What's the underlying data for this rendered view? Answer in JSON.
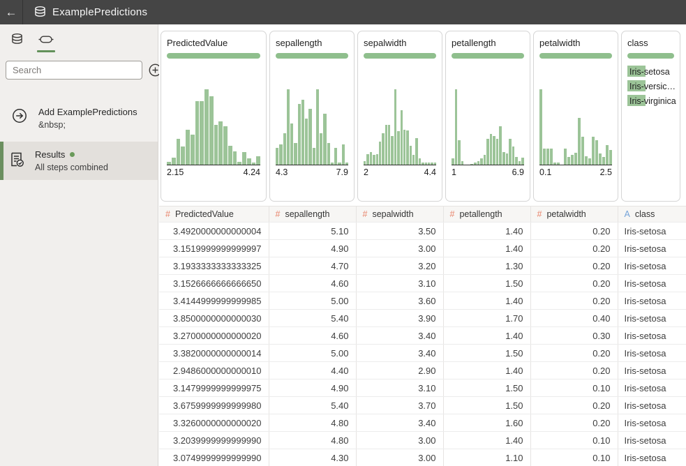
{
  "colors": {
    "header_bg": "#454545",
    "histogram_green": "#9cc498",
    "quality_green": "#8fbf8d",
    "active_tab_green": "#63915a",
    "selected_border_green": "#6b8f5f",
    "status_dot_green": "#6a9a5a",
    "numeric_icon_color": "#e8846b",
    "text_icon_color": "#74a3d8"
  },
  "header": {
    "back_glyph": "←",
    "title": "ExamplePredictions"
  },
  "sidebar": {
    "search": {
      "placeholder": "Search"
    },
    "items": [
      {
        "title": "Add ExamplePredictions",
        "subtitle": "&nbsp;",
        "selected": false,
        "has_status_dot": false
      },
      {
        "title": "Results",
        "subtitle": "All steps combined",
        "selected": true,
        "has_status_dot": true
      }
    ]
  },
  "cards": [
    {
      "title": "PredictedValue",
      "type": "histogram",
      "min": "2.15",
      "max": "4.24",
      "bars": [
        4,
        9,
        34,
        24,
        46,
        40,
        84,
        84,
        100,
        91,
        53,
        57,
        51,
        25,
        18,
        4,
        17,
        8,
        3,
        11
      ]
    },
    {
      "title": "sepallength",
      "type": "histogram",
      "min": "4.3",
      "max": "7.9",
      "bars": [
        22,
        27,
        42,
        100,
        55,
        29,
        81,
        86,
        61,
        74,
        22,
        100,
        42,
        68,
        29,
        3,
        22,
        3,
        27,
        3
      ]
    },
    {
      "title": "sepalwidth",
      "type": "histogram",
      "min": "2",
      "max": "4.4",
      "bars": [
        5,
        14,
        17,
        13,
        14,
        31,
        42,
        53,
        53,
        38,
        100,
        44,
        72,
        46,
        45,
        25,
        13,
        35,
        8,
        3,
        3,
        3,
        3,
        3
      ]
    },
    {
      "title": "petallength",
      "type": "histogram",
      "min": "1",
      "max": "6.9",
      "bars": [
        8,
        100,
        32,
        5,
        0,
        0,
        1,
        3,
        5,
        8,
        13,
        34,
        41,
        38,
        34,
        51,
        17,
        15,
        34,
        24,
        10,
        5,
        9
      ]
    },
    {
      "title": "petalwidth",
      "type": "histogram",
      "min": "0.1",
      "max": "2.5",
      "bars": [
        100,
        21,
        21,
        21,
        3,
        3,
        0,
        21,
        10,
        13,
        16,
        62,
        37,
        11,
        8,
        37,
        32,
        15,
        10,
        26,
        19
      ]
    },
    {
      "title": "class",
      "type": "categories",
      "categories": [
        {
          "label": "Iris-setosa"
        },
        {
          "label": "Iris-versic…"
        },
        {
          "label": "Iris-virginica"
        }
      ]
    }
  ],
  "table": {
    "columns": [
      {
        "icon": "#",
        "kind": "numeric",
        "label": "PredictedValue"
      },
      {
        "icon": "#",
        "kind": "numeric",
        "label": "sepallength"
      },
      {
        "icon": "#",
        "kind": "numeric",
        "label": "sepalwidth"
      },
      {
        "icon": "#",
        "kind": "numeric",
        "label": "petallength"
      },
      {
        "icon": "#",
        "kind": "numeric",
        "label": "petalwidth"
      },
      {
        "icon": "A",
        "kind": "text",
        "label": "class"
      }
    ],
    "rows": [
      [
        "3.4920000000000004",
        "5.10",
        "3.50",
        "1.40",
        "0.20",
        "Iris-setosa"
      ],
      [
        "3.1519999999999997",
        "4.90",
        "3.00",
        "1.40",
        "0.20",
        "Iris-setosa"
      ],
      [
        "3.1933333333333325",
        "4.70",
        "3.20",
        "1.30",
        "0.20",
        "Iris-setosa"
      ],
      [
        "3.1526666666666650",
        "4.60",
        "3.10",
        "1.50",
        "0.20",
        "Iris-setosa"
      ],
      [
        "3.4144999999999985",
        "5.00",
        "3.60",
        "1.40",
        "0.20",
        "Iris-setosa"
      ],
      [
        "3.8500000000000030",
        "5.40",
        "3.90",
        "1.70",
        "0.40",
        "Iris-setosa"
      ],
      [
        "3.2700000000000020",
        "4.60",
        "3.40",
        "1.40",
        "0.30",
        "Iris-setosa"
      ],
      [
        "3.3820000000000014",
        "5.00",
        "3.40",
        "1.50",
        "0.20",
        "Iris-setosa"
      ],
      [
        "2.9486000000000010",
        "4.40",
        "2.90",
        "1.40",
        "0.20",
        "Iris-setosa"
      ],
      [
        "3.1479999999999975",
        "4.90",
        "3.10",
        "1.50",
        "0.10",
        "Iris-setosa"
      ],
      [
        "3.6759999999999980",
        "5.40",
        "3.70",
        "1.50",
        "0.20",
        "Iris-setosa"
      ],
      [
        "3.3260000000000020",
        "4.80",
        "3.40",
        "1.60",
        "0.20",
        "Iris-setosa"
      ],
      [
        "3.2039999999999990",
        "4.80",
        "3.00",
        "1.40",
        "0.10",
        "Iris-setosa"
      ],
      [
        "3.0749999999999990",
        "4.30",
        "3.00",
        "1.10",
        "0.10",
        "Iris-setosa"
      ]
    ]
  }
}
